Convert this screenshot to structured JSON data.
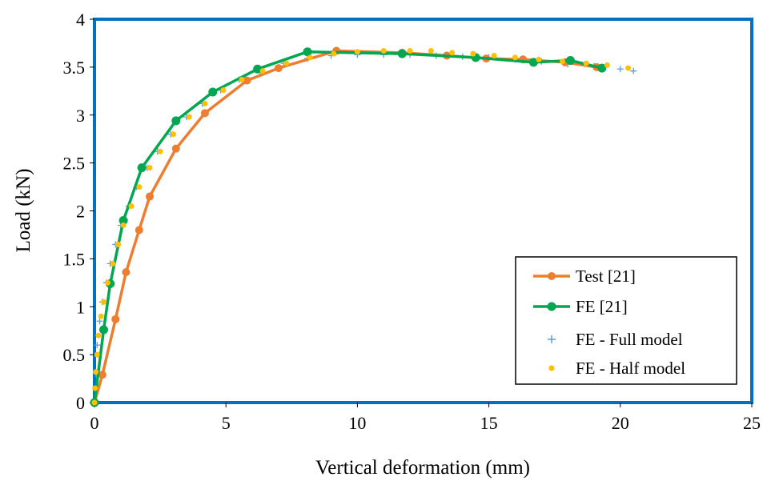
{
  "chart_data": {
    "type": "scatter",
    "xlabel": "Vertical deformation (mm)",
    "ylabel": "Load (kN)",
    "xlim": [
      0,
      25
    ],
    "ylim": [
      0,
      4
    ],
    "x_ticks": [
      "0",
      "5",
      "10",
      "15",
      "20",
      "25"
    ],
    "y_ticks": [
      "0",
      "0.5",
      "1",
      "1.5",
      "2",
      "2.5",
      "3",
      "3.5",
      "4"
    ],
    "grid": false,
    "legend_position": "bottom-right",
    "series": [
      {
        "name": "Test [21]",
        "style": "line-marker",
        "color": "#ED7D31",
        "points": [
          [
            0,
            0
          ],
          [
            0.3,
            0.29
          ],
          [
            0.8,
            0.87
          ],
          [
            1.2,
            1.36
          ],
          [
            1.7,
            1.8
          ],
          [
            2.1,
            2.15
          ],
          [
            3.1,
            2.65
          ],
          [
            4.2,
            3.02
          ],
          [
            5.8,
            3.36
          ],
          [
            7.0,
            3.49
          ],
          [
            9.2,
            3.67
          ],
          [
            11.7,
            3.65
          ],
          [
            13.4,
            3.62
          ],
          [
            14.9,
            3.59
          ],
          [
            16.3,
            3.58
          ],
          [
            17.9,
            3.55
          ],
          [
            19.1,
            3.5
          ]
        ]
      },
      {
        "name": "FE [21]",
        "style": "line-marker",
        "color": "#00A651",
        "points": [
          [
            0,
            0
          ],
          [
            0.35,
            0.76
          ],
          [
            0.6,
            1.24
          ],
          [
            1.1,
            1.9
          ],
          [
            1.8,
            2.45
          ],
          [
            3.1,
            2.94
          ],
          [
            4.5,
            3.24
          ],
          [
            6.2,
            3.48
          ],
          [
            8.1,
            3.66
          ],
          [
            11.7,
            3.64
          ],
          [
            14.5,
            3.6
          ],
          [
            16.7,
            3.55
          ],
          [
            18.1,
            3.57
          ],
          [
            19.3,
            3.49
          ]
        ]
      },
      {
        "name": "FE - Full model",
        "style": "plus",
        "color": "#5B9BD5",
        "points": [
          [
            0,
            0
          ],
          [
            0.05,
            0.3
          ],
          [
            0.1,
            0.6
          ],
          [
            0.2,
            0.85
          ],
          [
            0.3,
            1.05
          ],
          [
            0.45,
            1.25
          ],
          [
            0.6,
            1.45
          ],
          [
            0.8,
            1.65
          ],
          [
            1.0,
            1.85
          ],
          [
            1.3,
            2.05
          ],
          [
            1.6,
            2.25
          ],
          [
            2.0,
            2.45
          ],
          [
            2.4,
            2.62
          ],
          [
            2.9,
            2.8
          ],
          [
            3.5,
            2.98
          ],
          [
            4.1,
            3.12
          ],
          [
            4.8,
            3.26
          ],
          [
            5.5,
            3.37
          ],
          [
            6.3,
            3.46
          ],
          [
            7.2,
            3.54
          ],
          [
            8.1,
            3.59
          ],
          [
            9.0,
            3.62
          ],
          [
            10.0,
            3.63
          ],
          [
            11.0,
            3.63
          ],
          [
            12.0,
            3.63
          ],
          [
            13.0,
            3.62
          ],
          [
            14.0,
            3.61
          ],
          [
            15.0,
            3.6
          ],
          [
            16.0,
            3.58
          ],
          [
            17.0,
            3.56
          ],
          [
            18.0,
            3.53
          ],
          [
            19.0,
            3.51
          ],
          [
            20.0,
            3.48
          ],
          [
            20.5,
            3.46
          ]
        ]
      },
      {
        "name": "FE - Half model",
        "style": "dot",
        "color": "#FFC000",
        "points": [
          [
            0,
            0
          ],
          [
            0.02,
            0.15
          ],
          [
            0.05,
            0.32
          ],
          [
            0.1,
            0.5
          ],
          [
            0.15,
            0.7
          ],
          [
            0.25,
            0.9
          ],
          [
            0.35,
            1.05
          ],
          [
            0.5,
            1.25
          ],
          [
            0.7,
            1.45
          ],
          [
            0.9,
            1.65
          ],
          [
            1.1,
            1.85
          ],
          [
            1.4,
            2.05
          ],
          [
            1.7,
            2.25
          ],
          [
            2.1,
            2.45
          ],
          [
            2.5,
            2.62
          ],
          [
            3.0,
            2.8
          ],
          [
            3.6,
            2.98
          ],
          [
            4.2,
            3.12
          ],
          [
            4.9,
            3.26
          ],
          [
            5.6,
            3.37
          ],
          [
            6.4,
            3.46
          ],
          [
            7.3,
            3.54
          ],
          [
            8.2,
            3.6
          ],
          [
            9.1,
            3.64
          ],
          [
            10.0,
            3.66
          ],
          [
            11.0,
            3.67
          ],
          [
            12.0,
            3.67
          ],
          [
            12.8,
            3.67
          ],
          [
            13.6,
            3.65
          ],
          [
            14.4,
            3.64
          ],
          [
            15.2,
            3.62
          ],
          [
            16.0,
            3.6
          ],
          [
            16.9,
            3.58
          ],
          [
            17.8,
            3.56
          ],
          [
            18.7,
            3.54
          ],
          [
            19.5,
            3.52
          ],
          [
            20.3,
            3.49
          ]
        ]
      }
    ]
  }
}
